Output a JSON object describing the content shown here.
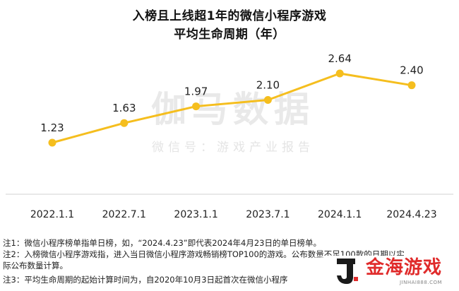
{
  "title_line1": "入榜且上线超1年的微信小程序游戏",
  "title_line2": "平均生命周期（年）",
  "watermark": {
    "big": "伽马数据",
    "small": "微信号：游戏产业报告"
  },
  "chart_data": {
    "type": "line",
    "title": "入榜且上线超1年的微信小程序游戏 平均生命周期（年）",
    "categories": [
      "2022.1.1",
      "2022.7.1",
      "2023.1.1",
      "2023.7.1",
      "2024.1.1",
      "2024.4.23"
    ],
    "values": [
      1.23,
      1.63,
      1.97,
      2.1,
      2.64,
      2.4
    ],
    "value_labels": [
      "1.23",
      "1.63",
      "1.97",
      "2.10",
      "2.64",
      "2.40"
    ],
    "ylim": [
      0.9,
      2.9
    ],
    "series_color": "#F5BE1E",
    "grid": false,
    "legend": "none"
  },
  "notes": [
    "注1：微信小程序榜单指单日榜，如，“2024.4.23”即代表2024年4月23日的单日榜单。",
    "注2：入榜微信小程序游戏指，进入当日微信小程序游戏畅销榜TOP100的游戏。公布数量不足100款的日期以实",
    "际公布数量计算。",
    "注3：平均生命周期的起始计算时间为，自2020年10月3日起首次在微信小程序"
  ],
  "corner_logo": {
    "text": "金海游戏",
    "sub": "JINHAI888.COM",
    "color": "#E02B2B"
  }
}
